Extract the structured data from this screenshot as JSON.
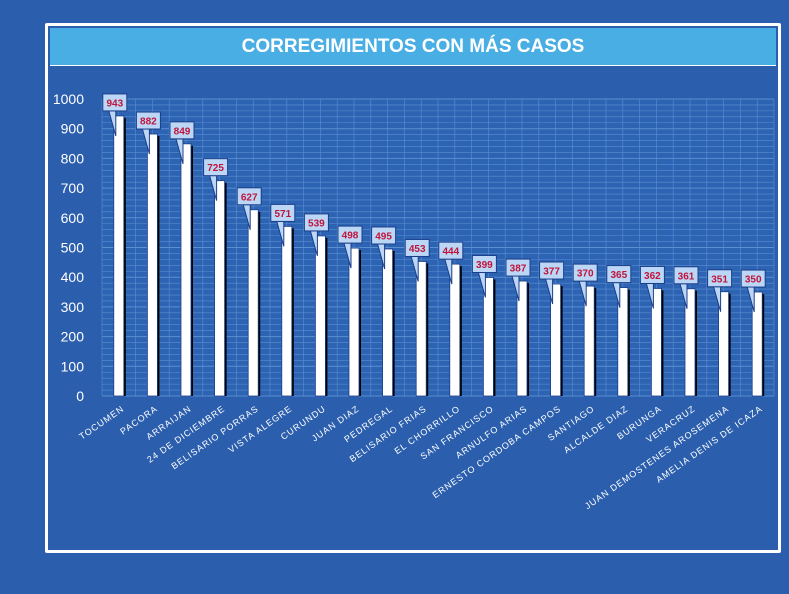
{
  "chart_data": {
    "type": "bar",
    "title": "CORREGIMIENTOS CON MÁS CASOS",
    "xlabel": "",
    "ylabel": "",
    "ylim": [
      0,
      1000
    ],
    "yticks": [
      0,
      100,
      200,
      300,
      400,
      500,
      600,
      700,
      800,
      900,
      1000
    ],
    "grid": true,
    "data_labels": "callouts",
    "categories": [
      "TOCUMEN",
      "PACORA",
      "ARRAIJAN",
      "24 DE DICIEMBRE",
      "BELISARIO PORRAS",
      "VISTA ALEGRE",
      "CURUNDU",
      "JUAN DIAZ",
      "PEDREGAL",
      "BELISARIO FRIAS",
      "EL CHORRILLO",
      "SAN FRANCISCO",
      "ARNULFO ARIAS",
      "ERNESTO CORDOBA CAMPOS",
      "SANTIAGO",
      "ALCALDE DIAZ",
      "BURUNGA",
      "VERACRUZ",
      "JUAN DEMOSTENES AROSEMENA",
      "AMELIA DENIS DE ICAZA"
    ],
    "values": [
      943,
      882,
      849,
      725,
      627,
      571,
      539,
      498,
      495,
      453,
      444,
      399,
      387,
      377,
      370,
      365,
      362,
      361,
      351,
      350
    ]
  },
  "colors": {
    "background": "#2b5fae",
    "title_bar": "#49aee3",
    "bar_fill": "#ffffff",
    "bar_shadow": "#000000",
    "gridline": "#5a8fd0",
    "callout_fill": "#bcd7f5",
    "callout_stroke": "#1b3f8a",
    "label_text": "#c0143c",
    "axis_text": "#ffffff"
  }
}
